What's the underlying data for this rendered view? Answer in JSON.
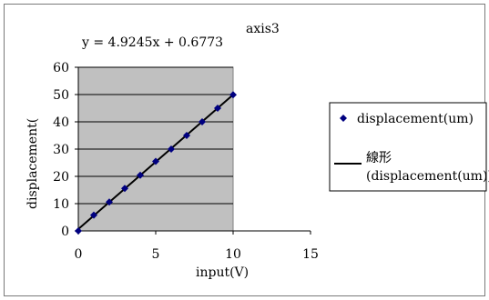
{
  "chart_data": {
    "type": "scatter",
    "title": "axis3",
    "equation": "y = 4.9245x + 0.6773",
    "xlabel": "input(V)",
    "ylabel": "displacement(",
    "xlim": [
      0,
      15
    ],
    "ylim": [
      0,
      60
    ],
    "xticks": [
      0,
      5,
      10,
      15
    ],
    "yticks": [
      0,
      10,
      20,
      30,
      40,
      50,
      60
    ],
    "grid": true,
    "legend_position": "right",
    "series": [
      {
        "name": "displacement(um)",
        "marker": "diamond",
        "x": [
          0,
          1,
          2,
          3,
          4,
          5,
          6,
          7,
          8,
          9,
          10
        ],
        "y": [
          0,
          5.8,
          10.6,
          15.6,
          20.4,
          25.5,
          30.0,
          35.0,
          40.0,
          45.0,
          49.9
        ]
      }
    ],
    "trendline": {
      "name": "線形\n(displacement(um))",
      "slope": 4.9245,
      "intercept": 0.6773,
      "x_range": [
        0,
        10
      ]
    },
    "colors": {
      "plot_area": "#c0c0c0",
      "marker": "#000080",
      "line": "#000000"
    }
  }
}
